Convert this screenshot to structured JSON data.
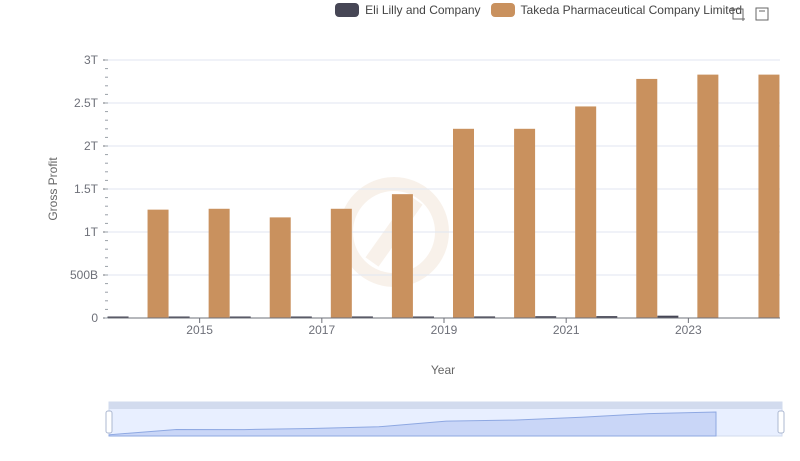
{
  "legend": {
    "items": [
      {
        "label": "Eli Lilly and Company",
        "color": "#464655"
      },
      {
        "label": "Takeda Pharmaceutical Company Limited",
        "color": "#c9915e"
      }
    ]
  },
  "toolbox": {
    "icons": [
      "zoom-icon",
      "restore-icon"
    ]
  },
  "chart_data": {
    "type": "bar",
    "xlabel": "Year",
    "ylabel": "Gross Profit",
    "categories": [
      "2014",
      "2015",
      "2016",
      "2017",
      "2018",
      "2019",
      "2020",
      "2021",
      "2022",
      "2023",
      "2024"
    ],
    "x_tick_labels": [
      "2015",
      "2017",
      "2019",
      "2021",
      "2023"
    ],
    "y_tick_labels": [
      "0",
      "500B",
      "1T",
      "1.5T",
      "2T",
      "2.5T",
      "3T"
    ],
    "ylim": [
      0,
      3000000000000
    ],
    "grid": true,
    "legend_position": "top-right",
    "series": [
      {
        "name": "Eli Lilly and Company",
        "color": "#464655",
        "values": [
          15000000000,
          15600000000,
          16100000000,
          17600000000,
          18100000000,
          17600000000,
          18500000000,
          21000000000,
          22000000000,
          27000000000,
          0
        ]
      },
      {
        "name": "Takeda Pharmaceutical Company Limited",
        "color": "#c9915e",
        "values": [
          1260000000000,
          1270000000000,
          1170000000000,
          1270000000000,
          1440000000000,
          2200000000000,
          2200000000000,
          2460000000000,
          2780000000000,
          2830000000000,
          2830000000000
        ]
      }
    ]
  }
}
